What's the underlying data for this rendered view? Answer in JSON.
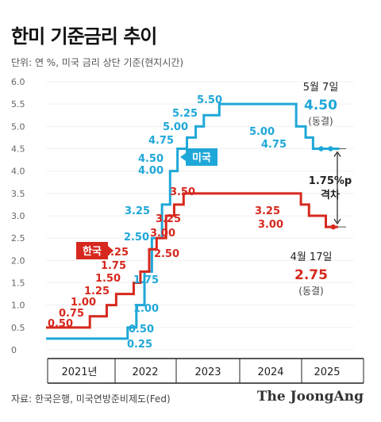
{
  "chart_data": {
    "type": "line",
    "title": "한미 기준금리 추이",
    "unit_note": "단위: 연 %, 미국 금리 상단 기준(현지시간)",
    "ylim": [
      0,
      6.0
    ],
    "y_ticks": [
      "0",
      "0.5",
      "1.0",
      "1.5",
      "2.0",
      "2.5",
      "3.0",
      "3.5",
      "4.0",
      "4.5",
      "5.0",
      "5.5",
      "6.0"
    ],
    "x_ticks": [
      "2021년",
      "2022",
      "2023",
      "2024",
      "2025"
    ],
    "series": [
      {
        "name": "미국",
        "color": "#1fa7d8",
        "steps": [
          {
            "t": 2021.0,
            "v": 0.25
          },
          {
            "t": 2022.21,
            "v": 0.5
          },
          {
            "t": 2022.34,
            "v": 1.0
          },
          {
            "t": 2022.46,
            "v": 1.75
          },
          {
            "t": 2022.57,
            "v": 2.5
          },
          {
            "t": 2022.72,
            "v": 3.25
          },
          {
            "t": 2022.84,
            "v": 4.0
          },
          {
            "t": 2022.95,
            "v": 4.5
          },
          {
            "t": 2023.09,
            "v": 4.75
          },
          {
            "t": 2023.22,
            "v": 5.0
          },
          {
            "t": 2023.34,
            "v": 5.25
          },
          {
            "t": 2023.57,
            "v": 5.5
          },
          {
            "t": 2024.71,
            "v": 5.0
          },
          {
            "t": 2024.85,
            "v": 4.75
          },
          {
            "t": 2024.96,
            "v": 4.5
          },
          {
            "t": 2025.35,
            "v": 4.5
          }
        ],
        "labels": [
          "0.25",
          "0.50",
          "1.00",
          "1.75",
          "2.50",
          "3.25",
          "4.00",
          "4.50",
          "4.75",
          "5.00",
          "5.25",
          "5.50",
          "5.00",
          "4.75"
        ]
      },
      {
        "name": "한국",
        "color": "#d6281e",
        "steps": [
          {
            "t": 2021.0,
            "v": 0.5
          },
          {
            "t": 2021.65,
            "v": 0.75
          },
          {
            "t": 2021.9,
            "v": 1.0
          },
          {
            "t": 2022.04,
            "v": 1.25
          },
          {
            "t": 2022.3,
            "v": 1.5
          },
          {
            "t": 2022.4,
            "v": 1.75
          },
          {
            "t": 2022.53,
            "v": 2.25
          },
          {
            "t": 2022.64,
            "v": 2.5
          },
          {
            "t": 2022.78,
            "v": 3.0
          },
          {
            "t": 2022.9,
            "v": 3.25
          },
          {
            "t": 2023.04,
            "v": 3.5
          },
          {
            "t": 2024.78,
            "v": 3.25
          },
          {
            "t": 2024.9,
            "v": 3.0
          },
          {
            "t": 2025.15,
            "v": 2.75
          },
          {
            "t": 2025.33,
            "v": 2.75
          }
        ],
        "labels": [
          "0.50",
          "0.75",
          "1.00",
          "1.25",
          "1.50",
          "1.75",
          "2.25",
          "2.50",
          "3.00",
          "3.25",
          "3.50",
          "3.25",
          "3.00"
        ]
      }
    ],
    "annotations": {
      "us_date": "5월 7일",
      "us_value": "4.50",
      "us_note": "(동결)",
      "kr_date": "4월 17일",
      "kr_value": "2.75",
      "kr_note": "(동결)",
      "gap_value": "1.75%p",
      "gap_label": "격차"
    }
  },
  "footer": {
    "source": "자료: 한국은행, 미국연방준비제도(Fed)",
    "brand": "The JoongAng"
  }
}
